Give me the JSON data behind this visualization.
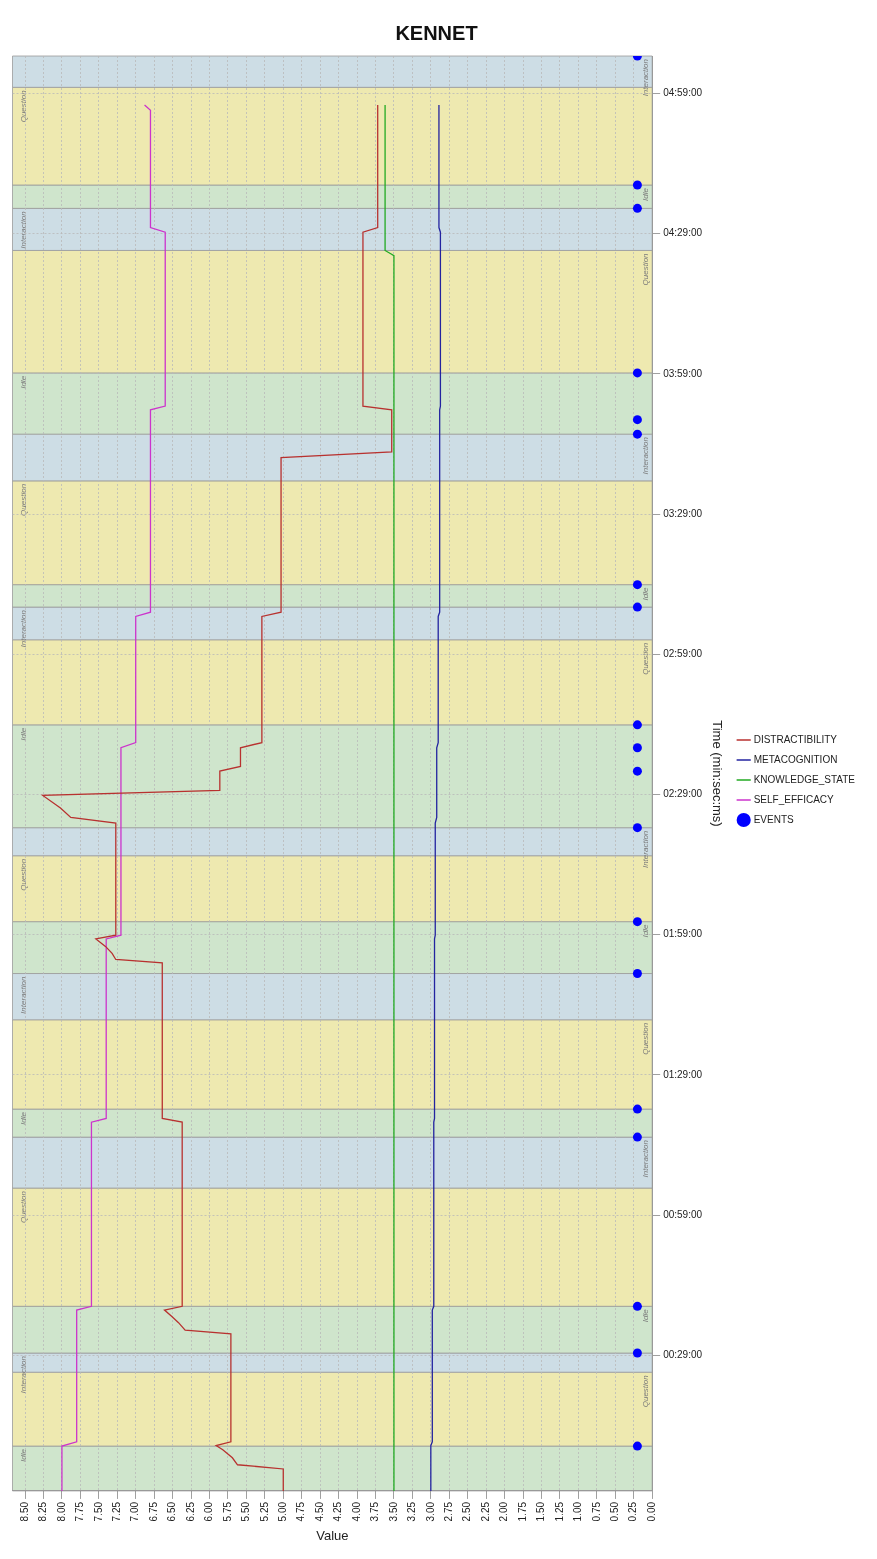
{
  "chart_data": {
    "type": "line",
    "title": "KENNET",
    "xlabel": "Value",
    "ylabel": "Time (min:sec:ms)",
    "orientation": "horizontal",
    "xlim": [
      8.67,
      0
    ],
    "xticks": [
      {
        "value": 0,
        "label": "0.00"
      },
      {
        "value": 0.25,
        "label": "0.25"
      },
      {
        "value": 0.5,
        "label": "0.50"
      },
      {
        "value": 0.75,
        "label": "0.75"
      },
      {
        "value": 1,
        "label": "1.00"
      },
      {
        "value": 1.25,
        "label": "1.25"
      },
      {
        "value": 1.5,
        "label": "1.50"
      },
      {
        "value": 1.75,
        "label": "1.75"
      },
      {
        "value": 2,
        "label": "2.00"
      },
      {
        "value": 2.25,
        "label": "2.25"
      },
      {
        "value": 2.5,
        "label": "2.50"
      },
      {
        "value": 2.75,
        "label": "2.75"
      },
      {
        "value": 3,
        "label": "3.00"
      },
      {
        "value": 3.25,
        "label": "3.25"
      },
      {
        "value": 3.5,
        "label": "3.50"
      },
      {
        "value": 3.75,
        "label": "3.75"
      },
      {
        "value": 4,
        "label": "4.00"
      },
      {
        "value": 4.25,
        "label": "4.25"
      },
      {
        "value": 4.5,
        "label": "4.50"
      },
      {
        "value": 4.75,
        "label": "4.75"
      },
      {
        "value": 5,
        "label": "5.00"
      },
      {
        "value": 5.25,
        "label": "5.25"
      },
      {
        "value": 5.5,
        "label": "5.50"
      },
      {
        "value": 5.75,
        "label": "5.75"
      },
      {
        "value": 6,
        "label": "6.00"
      },
      {
        "value": 6.25,
        "label": "6.25"
      },
      {
        "value": 6.5,
        "label": "6.50"
      },
      {
        "value": 6.75,
        "label": "6.75"
      },
      {
        "value": 7,
        "label": "7.00"
      },
      {
        "value": 7.25,
        "label": "7.25"
      },
      {
        "value": 7.5,
        "label": "7.50"
      },
      {
        "value": 7.75,
        "label": "7.75"
      },
      {
        "value": 8,
        "label": "8.00"
      },
      {
        "value": 8.25,
        "label": "8.25"
      },
      {
        "value": 8.5,
        "label": "8.50"
      }
    ],
    "ylim": [
      0,
      307
    ],
    "yticks": [
      {
        "value": 29,
        "label": "00:29:00"
      },
      {
        "value": 59,
        "label": "00:59:00"
      },
      {
        "value": 89,
        "label": "01:29:00"
      },
      {
        "value": 119,
        "label": "01:59:00"
      },
      {
        "value": 149,
        "label": "02:29:00"
      },
      {
        "value": 179,
        "label": "02:59:00"
      },
      {
        "value": 209,
        "label": "03:29:00"
      },
      {
        "value": 239,
        "label": "03:59:00"
      },
      {
        "value": 269,
        "label": "04:29:00"
      },
      {
        "value": 299,
        "label": "04:59:00"
      }
    ],
    "grid": true,
    "legend": "right",
    "series": [
      {
        "name": "DISTRACTIBILITY",
        "color": "#b8312f",
        "x": [
          0,
          4.7,
          5.6,
          7.1,
          8.8,
          9.7,
          10.5,
          33.6,
          34.4,
          36.0,
          37.3,
          38.7,
          39.5,
          78.9,
          79.7,
          113.0,
          113.7,
          115.0,
          116.5,
          118.1,
          118.9,
          142.9,
          144.1,
          146.1,
          148.8,
          149.9,
          154.0,
          155.0,
          159.0,
          160.1,
          187.1,
          188.0,
          221.1,
          222.3,
          231.3,
          232.1,
          269.3,
          270.3,
          296.5
        ],
        "values": [
          5.0,
          5.0,
          5.62,
          5.69,
          5.82,
          5.91,
          5.71,
          5.71,
          6.33,
          6.42,
          6.51,
          6.61,
          6.37,
          6.37,
          6.64,
          6.64,
          7.27,
          7.32,
          7.41,
          7.54,
          7.27,
          7.27,
          7.88,
          8.02,
          8.26,
          5.86,
          5.86,
          5.58,
          5.58,
          5.29,
          5.29,
          5.03,
          5.03,
          3.53,
          3.53,
          3.92,
          3.92,
          3.72,
          3.72
        ]
      },
      {
        "name": "METACOGNITION",
        "color": "#2323a0",
        "x": [
          0,
          9.7,
          10.5,
          38.7,
          39.5,
          78.9,
          79.7,
          118.1,
          118.9,
          142.9,
          144.1,
          159.0,
          160.1,
          187.1,
          188.0,
          231.3,
          232.1,
          269.3,
          270.3,
          296.5
        ],
        "values": [
          3.0,
          3.0,
          2.98,
          2.98,
          2.96,
          2.96,
          2.95,
          2.95,
          2.94,
          2.94,
          2.92,
          2.92,
          2.9,
          2.9,
          2.88,
          2.88,
          2.87,
          2.87,
          2.89,
          2.89
        ]
      },
      {
        "name": "KNOWLEDGE_STATE",
        "color": "#22aa22",
        "x": [
          0,
          264.3,
          265.4,
          296.5
        ],
        "values": [
          3.5,
          3.5,
          3.62,
          3.62
        ]
      },
      {
        "name": "SELF_EFFICACY",
        "color": "#cc33cc",
        "x": [
          0,
          9.6,
          10.5,
          38.7,
          39.5,
          78.9,
          79.7,
          118.1,
          118.9,
          159.0,
          160.1,
          187.1,
          188.0,
          231.3,
          232.1,
          269.3,
          270.3,
          295.4,
          296.5
        ],
        "values": [
          8.0,
          8.0,
          7.8,
          7.8,
          7.6,
          7.6,
          7.4,
          7.4,
          7.2,
          7.2,
          7.0,
          7.0,
          6.8,
          6.8,
          6.6,
          6.6,
          6.8,
          6.8,
          6.88
        ]
      },
      {
        "name": "EVENTS",
        "type": "scatter",
        "marker": "circle",
        "color": "#0000ff",
        "x": [
          9.6,
          29.5,
          39.5,
          75.7,
          81.7,
          110.7,
          121.8,
          141.9,
          154.0,
          159.0,
          163.9,
          189.1,
          193.9,
          226.1,
          229.2,
          239.2,
          274.4,
          279.4,
          307
        ],
        "values": [
          0.2,
          0.2,
          0.2,
          0.2,
          0.2,
          0.2,
          0.2,
          0.2,
          0.2,
          0.2,
          0.2,
          0.2,
          0.2,
          0.2,
          0.2,
          0.2,
          0.2,
          0.2,
          0.2
        ]
      }
    ],
    "bands": [
      {
        "axis": "y",
        "from": 0,
        "to": 9.6,
        "label": "Idle",
        "color": "#cfe5cc"
      },
      {
        "axis": "y",
        "from": 9.6,
        "to": 25.4,
        "label": "Question",
        "color": "#eee9b0"
      },
      {
        "axis": "y",
        "from": 25.4,
        "to": 29.5,
        "label": "Interaction",
        "color": "#cddde5"
      },
      {
        "axis": "y",
        "from": 29.5,
        "to": 39.5,
        "label": "Idle",
        "color": "#cfe5cc"
      },
      {
        "axis": "y",
        "from": 39.5,
        "to": 64.8,
        "label": "Question",
        "color": "#eee9b0"
      },
      {
        "axis": "y",
        "from": 64.8,
        "to": 75.7,
        "label": "Interaction",
        "color": "#cddde5"
      },
      {
        "axis": "y",
        "from": 75.7,
        "to": 81.7,
        "label": "Idle",
        "color": "#cfe5cc"
      },
      {
        "axis": "y",
        "from": 81.7,
        "to": 100.8,
        "label": "Question",
        "color": "#eee9b0"
      },
      {
        "axis": "y",
        "from": 100.8,
        "to": 110.7,
        "label": "Interaction",
        "color": "#cddde5"
      },
      {
        "axis": "y",
        "from": 110.7,
        "to": 121.8,
        "label": "Idle",
        "color": "#cfe5cc"
      },
      {
        "axis": "y",
        "from": 121.8,
        "to": 135.9,
        "label": "Question",
        "color": "#eee9b0"
      },
      {
        "axis": "y",
        "from": 135.9,
        "to": 141.9,
        "label": "Interaction",
        "color": "#cddde5"
      },
      {
        "axis": "y",
        "from": 141.9,
        "to": 163.9,
        "label": "Idle",
        "color": "#cfe5cc"
      },
      {
        "axis": "y",
        "from": 163.9,
        "to": 182.1,
        "label": "Question",
        "color": "#eee9b0"
      },
      {
        "axis": "y",
        "from": 182.1,
        "to": 189.1,
        "label": "Interaction",
        "color": "#cddde5"
      },
      {
        "axis": "y",
        "from": 189.1,
        "to": 193.9,
        "label": "Idle",
        "color": "#cfe5cc"
      },
      {
        "axis": "y",
        "from": 193.9,
        "to": 216.1,
        "label": "Question",
        "color": "#eee9b0"
      },
      {
        "axis": "y",
        "from": 216.1,
        "to": 226.1,
        "label": "Interaction",
        "color": "#cddde5"
      },
      {
        "axis": "y",
        "from": 226.1,
        "to": 239.2,
        "label": "Idle",
        "color": "#cfe5cc"
      },
      {
        "axis": "y",
        "from": 239.2,
        "to": 265.4,
        "label": "Question",
        "color": "#eee9b0"
      },
      {
        "axis": "y",
        "from": 265.4,
        "to": 274.4,
        "label": "Interaction",
        "color": "#cddde5"
      },
      {
        "axis": "y",
        "from": 274.4,
        "to": 279.4,
        "label": "Idle",
        "color": "#cfe5cc"
      },
      {
        "axis": "y",
        "from": 279.4,
        "to": 300.3,
        "label": "Question",
        "color": "#eee9b0"
      },
      {
        "axis": "y",
        "from": 300.3,
        "to": 307,
        "label": "Interaction",
        "color": "#cddde5"
      }
    ]
  }
}
